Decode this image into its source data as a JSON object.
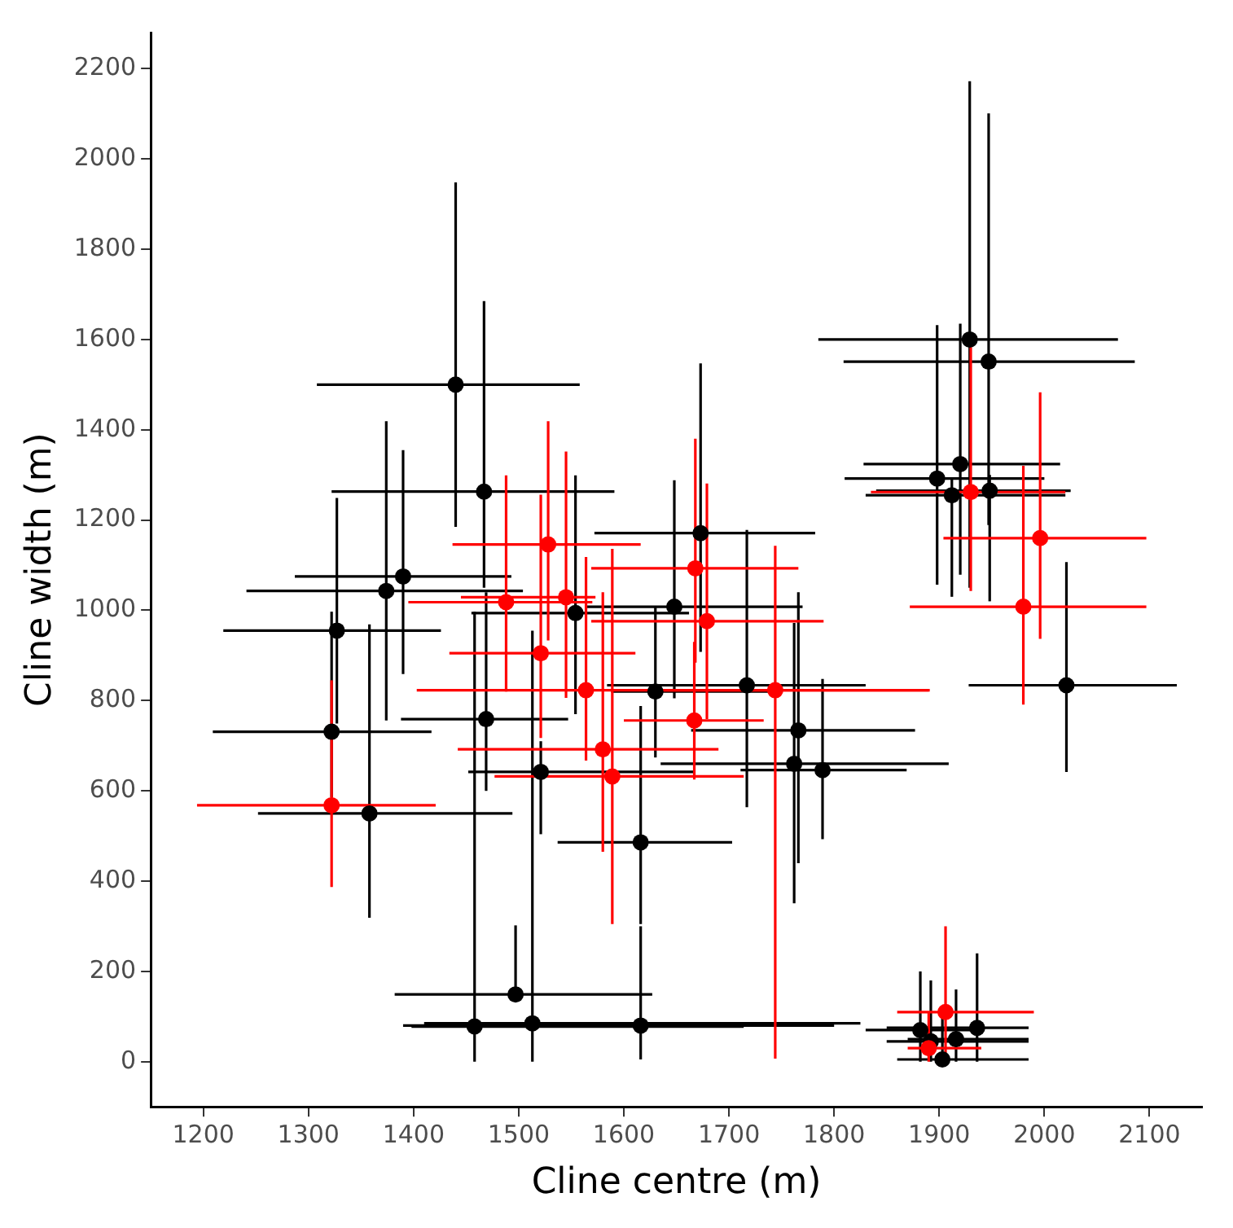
{
  "chart_data": {
    "type": "scatter",
    "xlabel": "Cline centre (m)",
    "ylabel": "Cline width (m)",
    "xlim": [
      1150,
      2150
    ],
    "xticks": [
      1200,
      1300,
      1400,
      1500,
      1600,
      1700,
      1800,
      1900,
      2000,
      2100
    ],
    "ylim": [
      -100,
      2280
    ],
    "yticks": [
      0,
      200,
      400,
      600,
      800,
      1000,
      1200,
      1400,
      1600,
      1800,
      2000,
      2200
    ],
    "grid": false,
    "legend": false,
    "marker": "circle",
    "series": [
      {
        "color": "#000000",
        "x": [
          1440,
          1467,
          1390,
          1374,
          1327,
          1322,
          1358,
          1469,
          1521,
          1554,
          1497,
          1458,
          1513,
          1616,
          1616,
          1630,
          1648,
          1673,
          1717,
          1766,
          1762,
          1789,
          1929,
          1947,
          1920,
          1898,
          1912,
          1948,
          2021,
          1882,
          1892,
          1903,
          1916,
          1936
        ],
        "values": [
          1500,
          1263,
          1075,
          1043,
          955,
          731,
          550,
          759,
          642,
          994,
          149,
          78,
          85,
          80,
          486,
          820,
          1008,
          1171,
          834,
          734,
          660,
          646,
          1600,
          1551,
          1324,
          1292,
          1255,
          1265,
          834,
          70,
          45,
          5,
          50,
          75
        ],
        "xerrors": [
          [
            1308,
            1558
          ],
          [
            1322,
            1591
          ],
          [
            1287,
            1493
          ],
          [
            1241,
            1504
          ],
          [
            1219,
            1426
          ],
          [
            1209,
            1417
          ],
          [
            1252,
            1494
          ],
          [
            1388,
            1547
          ],
          [
            1452,
            1668
          ],
          [
            1455,
            1662
          ],
          [
            1382,
            1627
          ],
          [
            1398,
            1714
          ],
          [
            1410,
            1825
          ],
          [
            1390,
            1800
          ],
          [
            1537,
            1703
          ],
          [
            1588,
            1746
          ],
          [
            1564,
            1770
          ],
          [
            1572,
            1782
          ],
          [
            1584,
            1830
          ],
          [
            1664,
            1877
          ],
          [
            1635,
            1909
          ],
          [
            1711,
            1869
          ],
          [
            1785,
            2070
          ],
          [
            1809,
            2086
          ],
          [
            1828,
            2015
          ],
          [
            1810,
            2000
          ],
          [
            1830,
            2020
          ],
          [
            1840,
            2025
          ],
          [
            1928,
            2126
          ],
          [
            1830,
            1935
          ],
          [
            1850,
            1985
          ],
          [
            1860,
            1985
          ],
          [
            1870,
            1985
          ],
          [
            1850,
            1985
          ]
        ],
        "errors": [
          [
            1185,
            1948
          ],
          [
            1050,
            1685
          ],
          [
            859,
            1355
          ],
          [
            756,
            1419
          ],
          [
            749,
            1249
          ],
          [
            586,
            997
          ],
          [
            319,
            969
          ],
          [
            600,
            1040
          ],
          [
            504,
            710
          ],
          [
            770,
            1299
          ],
          [
            149,
            302
          ],
          [
            0,
            997
          ],
          [
            0,
            955
          ],
          [
            5,
            300
          ],
          [
            305,
            788
          ],
          [
            674,
            1008
          ],
          [
            805,
            1288
          ],
          [
            908,
            1547
          ],
          [
            564,
            1178
          ],
          [
            440,
            1040
          ],
          [
            351,
            972
          ],
          [
            493,
            848
          ],
          [
            1050,
            2172
          ],
          [
            1189,
            2101
          ],
          [
            1079,
            1635
          ],
          [
            1057,
            1632
          ],
          [
            1030,
            1290
          ],
          [
            1020,
            1300
          ],
          [
            642,
            1107
          ],
          [
            0,
            200
          ],
          [
            0,
            180
          ],
          [
            0,
            100
          ],
          [
            0,
            160
          ],
          [
            0,
            240
          ]
        ]
      },
      {
        "color": "#ff0000",
        "x": [
          1322,
          1488,
          1528,
          1545,
          1521,
          1564,
          1580,
          1589,
          1668,
          1679,
          1667,
          1744,
          1930,
          1996,
          1980,
          1906,
          1890
        ],
        "values": [
          568,
          1018,
          1146,
          1029,
          905,
          823,
          692,
          632,
          1093,
          976,
          756,
          823,
          1262,
          1160,
          1008,
          110,
          30
        ],
        "xerrors": [
          [
            1194,
            1421
          ],
          [
            1395,
            1570
          ],
          [
            1437,
            1616
          ],
          [
            1445,
            1573
          ],
          [
            1434,
            1611
          ],
          [
            1403,
            1890
          ],
          [
            1442,
            1690
          ],
          [
            1477,
            1714
          ],
          [
            1569,
            1766
          ],
          [
            1569,
            1790
          ],
          [
            1600,
            1733
          ],
          [
            1635,
            1891
          ],
          [
            1835,
            2020
          ],
          [
            1904,
            2097
          ],
          [
            1872,
            2097
          ],
          [
            1860,
            1990
          ],
          [
            1870,
            1940
          ]
        ],
        "errors": [
          [
            387,
            845
          ],
          [
            820,
            1299
          ],
          [
            933,
            1419
          ],
          [
            806,
            1352
          ],
          [
            717,
            1256
          ],
          [
            667,
            1118
          ],
          [
            465,
            1040
          ],
          [
            305,
            1136
          ],
          [
            884,
            1380
          ],
          [
            759,
            1281
          ],
          [
            625,
            930
          ],
          [
            7,
            1143
          ],
          [
            1043,
            1583
          ],
          [
            937,
            1483
          ],
          [
            791,
            1320
          ],
          [
            0,
            300
          ],
          [
            0,
            110
          ]
        ]
      }
    ]
  }
}
